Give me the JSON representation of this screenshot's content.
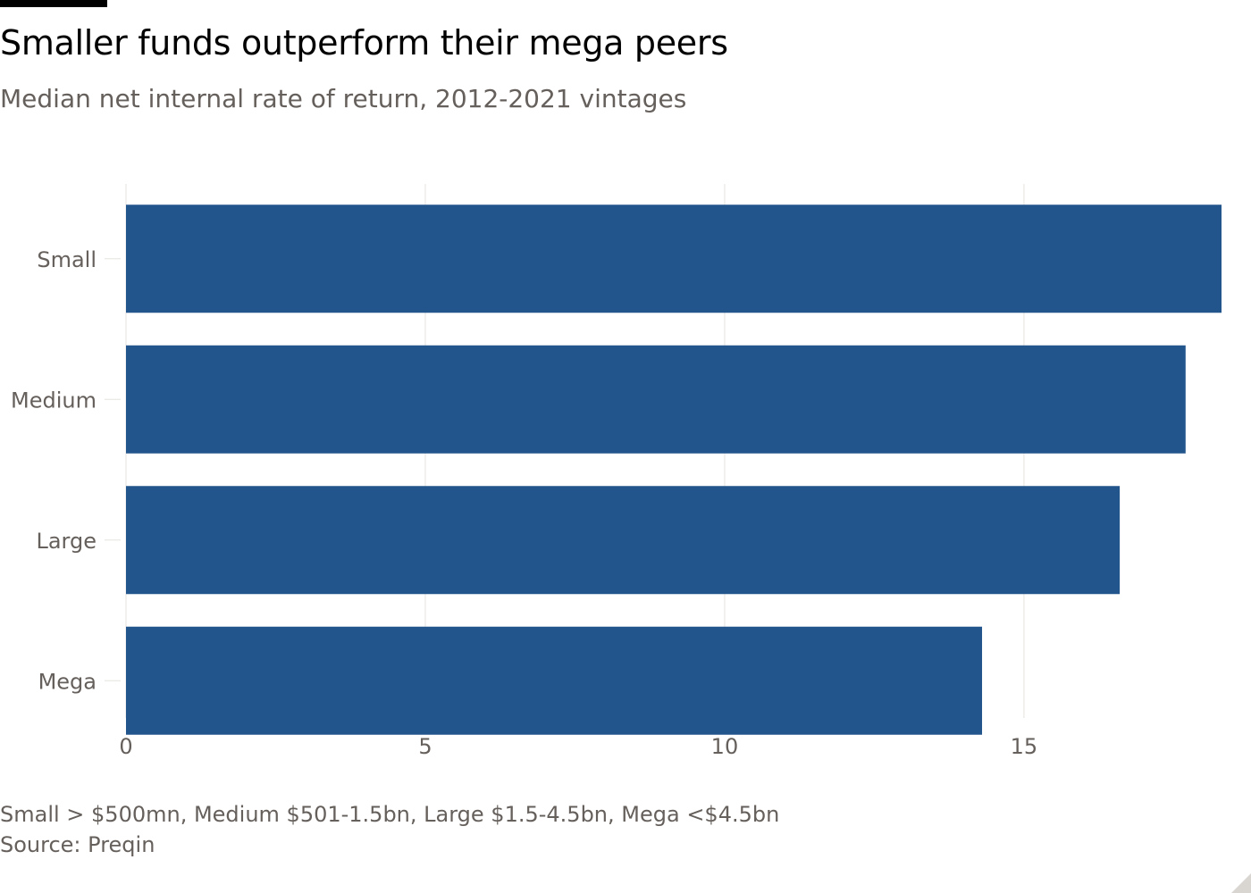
{
  "header": {
    "title": "Smaller funds outperform their mega peers",
    "subtitle": "Median net internal rate of return, 2012-2021 vintages"
  },
  "footer": {
    "note": "Small > $500mn, Medium $501-1.5bn, Large $1.5-4.5bn, Mega <$4.5bn",
    "source": "Source: Preqin"
  },
  "colors": {
    "bar": "#22558b",
    "grid": "#e6e3df",
    "tick_text": "#66605c"
  },
  "chart_data": {
    "type": "bar",
    "orientation": "horizontal",
    "title": "Smaller funds outperform their mega peers",
    "subtitle": "Median net internal rate of return, 2012-2021 vintages",
    "categories": [
      "Small",
      "Medium",
      "Large",
      "Mega"
    ],
    "values": [
      18.3,
      17.7,
      16.6,
      14.3
    ],
    "xlim": [
      0,
      18.3
    ],
    "xticks": [
      0,
      5,
      10,
      15
    ],
    "xlabel": "",
    "ylabel": "",
    "grid": true
  }
}
